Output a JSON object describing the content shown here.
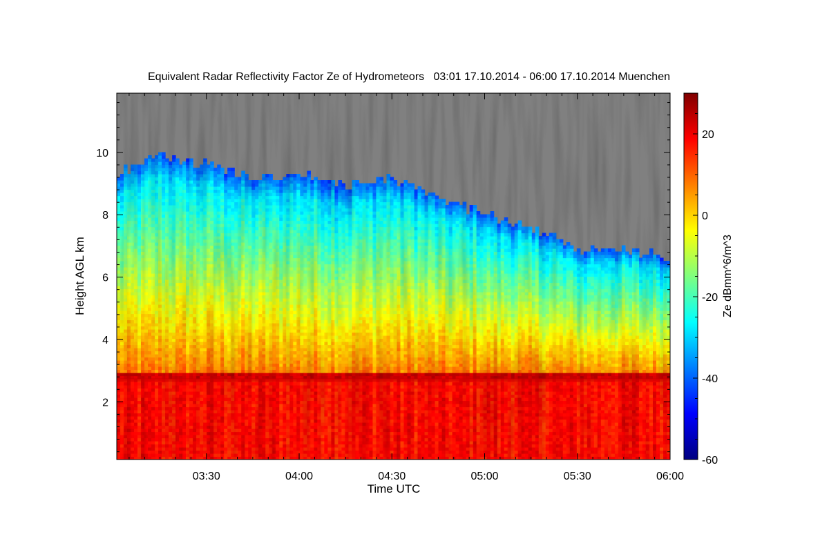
{
  "chart_data": {
    "type": "heatmap",
    "title": "Equivalent Radar Reflectivity Factor Ze of Hydrometeors   03:01 17.10.2014 - 06:00 17.10.2014 Muenchen",
    "xlabel": "Time UTC",
    "ylabel": "Height AGL km",
    "x_tick_labels": [
      "03:30",
      "04:00",
      "04:30",
      "05:00",
      "05:30",
      "06:00"
    ],
    "x_tick_values_min": [
      210,
      240,
      270,
      300,
      330,
      360
    ],
    "xlim_min": [
      181,
      360
    ],
    "y_tick_labels": [
      "2",
      "4",
      "6",
      "8",
      "10"
    ],
    "y_tick_values": [
      2,
      4,
      6,
      8,
      10
    ],
    "ylim": [
      0.15,
      11.9
    ],
    "colorbar": {
      "label": "Ze dBmm^6/m^3",
      "range": [
        -60,
        30
      ],
      "tick_labels": [
        "-60",
        "-40",
        "-20",
        "0",
        "20"
      ],
      "tick_values": [
        -60,
        -40,
        -20,
        0,
        20
      ],
      "colormap": [
        "#00007f",
        "#0000ff",
        "#007fff",
        "#00ffff",
        "#7fff7f",
        "#ffff00",
        "#ff7f00",
        "#ff0000",
        "#7f0000"
      ]
    },
    "no_data_color": "#808080",
    "echo_top_km": {
      "time_min": [
        181,
        195,
        210,
        225,
        240,
        255,
        270,
        285,
        300,
        315,
        330,
        345,
        360
      ],
      "height": [
        9.3,
        9.9,
        9.6,
        9.2,
        9.3,
        9.0,
        9.2,
        8.6,
        8.0,
        7.6,
        6.9,
        6.9,
        6.6
      ]
    },
    "melting_layer_km": 2.7
  }
}
